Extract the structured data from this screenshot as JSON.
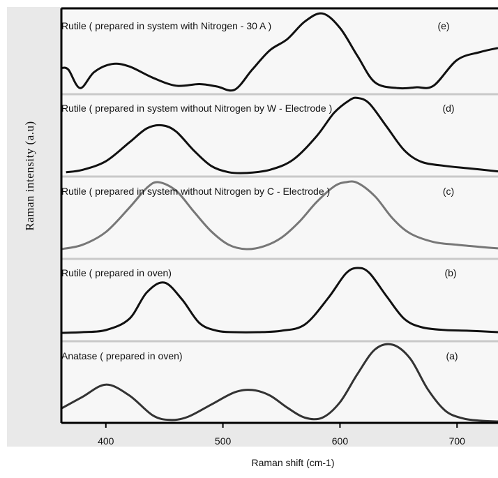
{
  "chart_data": {
    "type": "line",
    "xlabel": "Raman shift (cm-1)",
    "ylabel": "Raman intensity (a.u)",
    "xlim": [
      362,
      735
    ],
    "xticks": [
      400,
      500,
      600,
      700
    ],
    "grid": false,
    "series": [
      {
        "id": "a",
        "letter": "(a)",
        "name": "Anatase ( prepared in oven)",
        "color": "#333333",
        "x": [
          362,
          380,
          400,
          420,
          440,
          455,
          470,
          490,
          510,
          525,
          540,
          555,
          570,
          585,
          600,
          615,
          630,
          645,
          660,
          675,
          690,
          705,
          720,
          735
        ],
        "y": [
          0.17,
          0.32,
          0.48,
          0.34,
          0.08,
          0.02,
          0.06,
          0.22,
          0.38,
          0.41,
          0.34,
          0.18,
          0.05,
          0.05,
          0.25,
          0.62,
          0.94,
          1.0,
          0.82,
          0.42,
          0.14,
          0.04,
          0.01,
          0.0
        ]
      },
      {
        "id": "b",
        "letter": "(b)",
        "name": "Rutile ( prepared in oven)",
        "color": "#111111",
        "x": [
          362,
          380,
          400,
          420,
          435,
          450,
          465,
          480,
          495,
          510,
          530,
          550,
          570,
          590,
          605,
          615,
          625,
          640,
          655,
          670,
          690,
          710,
          735
        ],
        "y": [
          0.0,
          0.01,
          0.04,
          0.2,
          0.58,
          0.72,
          0.48,
          0.14,
          0.03,
          0.01,
          0.01,
          0.03,
          0.12,
          0.5,
          0.85,
          0.93,
          0.86,
          0.52,
          0.2,
          0.08,
          0.04,
          0.03,
          0.01
        ]
      },
      {
        "id": "c",
        "letter": "(c)",
        "name": "Rutile ( prepared in system without Nitrogen  by C - Electrode )",
        "color": "#777777",
        "x": [
          362,
          380,
          400,
          420,
          435,
          445,
          460,
          475,
          490,
          505,
          520,
          535,
          550,
          565,
          580,
          595,
          605,
          615,
          630,
          645,
          660,
          680,
          700,
          720,
          735
        ],
        "y": [
          0.02,
          0.08,
          0.26,
          0.6,
          0.88,
          0.96,
          0.84,
          0.55,
          0.27,
          0.08,
          0.02,
          0.06,
          0.18,
          0.4,
          0.68,
          0.9,
          0.96,
          0.95,
          0.76,
          0.45,
          0.24,
          0.12,
          0.08,
          0.05,
          0.03
        ]
      },
      {
        "id": "d",
        "letter": "(d)",
        "name": "Rutile ( prepared in system without Nitrogen by W - Electrode )",
        "color": "#111111",
        "x": [
          366,
          380,
          400,
          420,
          435,
          448,
          460,
          475,
          490,
          505,
          520,
          540,
          560,
          580,
          595,
          608,
          615,
          625,
          640,
          655,
          670,
          690,
          710,
          735
        ],
        "y": [
          0.02,
          0.05,
          0.16,
          0.4,
          0.58,
          0.62,
          0.54,
          0.3,
          0.1,
          0.02,
          0.01,
          0.05,
          0.18,
          0.48,
          0.78,
          0.94,
          0.97,
          0.9,
          0.6,
          0.3,
          0.15,
          0.1,
          0.07,
          0.03
        ]
      },
      {
        "id": "e",
        "letter": "(e)",
        "name": "Rutile ( prepared in system with Nitrogen - 30 A )",
        "color": "#111111",
        "x": [
          362,
          368,
          378,
          390,
          405,
          420,
          440,
          460,
          480,
          495,
          510,
          525,
          540,
          555,
          570,
          585,
          600,
          615,
          630,
          650,
          665,
          680,
          700,
          720,
          735
        ],
        "y": [
          0.3,
          0.28,
          0.05,
          0.25,
          0.35,
          0.32,
          0.18,
          0.08,
          0.1,
          0.07,
          0.03,
          0.28,
          0.52,
          0.66,
          0.88,
          0.98,
          0.8,
          0.45,
          0.12,
          0.05,
          0.06,
          0.08,
          0.4,
          0.5,
          0.55
        ]
      }
    ]
  }
}
